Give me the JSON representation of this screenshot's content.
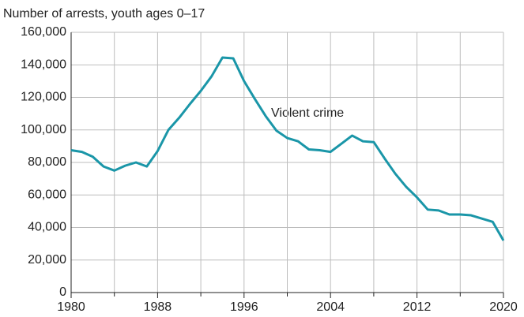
{
  "chart_data": {
    "type": "line",
    "y_axis_label": "Number of arrests, youth ages 0–17",
    "annotations": [
      "Violent crime"
    ],
    "x": [
      1980,
      1981,
      1982,
      1983,
      1984,
      1985,
      1986,
      1987,
      1988,
      1989,
      1990,
      1991,
      1992,
      1993,
      1994,
      1995,
      1996,
      1997,
      1998,
      1999,
      2000,
      2001,
      2002,
      2003,
      2004,
      2005,
      2006,
      2007,
      2008,
      2009,
      2010,
      2011,
      2012,
      2013,
      2014,
      2015,
      2016,
      2017,
      2018,
      2019,
      2020
    ],
    "series": [
      {
        "name": "Violent crime",
        "color": "#1a96a8",
        "values": [
          87500,
          86500,
          83500,
          77500,
          75000,
          78000,
          80000,
          77500,
          87000,
          100000,
          107500,
          116000,
          124000,
          133000,
          144500,
          144000,
          130000,
          119000,
          108500,
          99500,
          95000,
          93000,
          88000,
          87500,
          86500,
          91500,
          96500,
          93000,
          92500,
          82500,
          73000,
          65000,
          58500,
          51000,
          50500,
          48000,
          48000,
          47500,
          45500,
          43500,
          32000
        ]
      }
    ],
    "xlim": [
      1980,
      2020
    ],
    "xticks": [
      1980,
      1988,
      1996,
      2004,
      2012,
      2020
    ],
    "xminor_ticks": [
      1984,
      1992,
      2000,
      2008,
      2016
    ],
    "ylim": [
      0,
      160000
    ],
    "yticks": [
      0,
      {
        "value": 20000,
        "label": "20,000"
      },
      {
        "value": 40000,
        "label": "40,000"
      },
      {
        "value": 60000,
        "label": "60,000"
      },
      {
        "value": 80000,
        "label": "80,000"
      },
      {
        "value": 100000,
        "label": "100,000"
      },
      {
        "value": 120000,
        "label": "120,000"
      },
      {
        "value": 140000,
        "label": "140,000"
      },
      {
        "value": 160000,
        "label": "160,000"
      }
    ],
    "grid": true
  }
}
